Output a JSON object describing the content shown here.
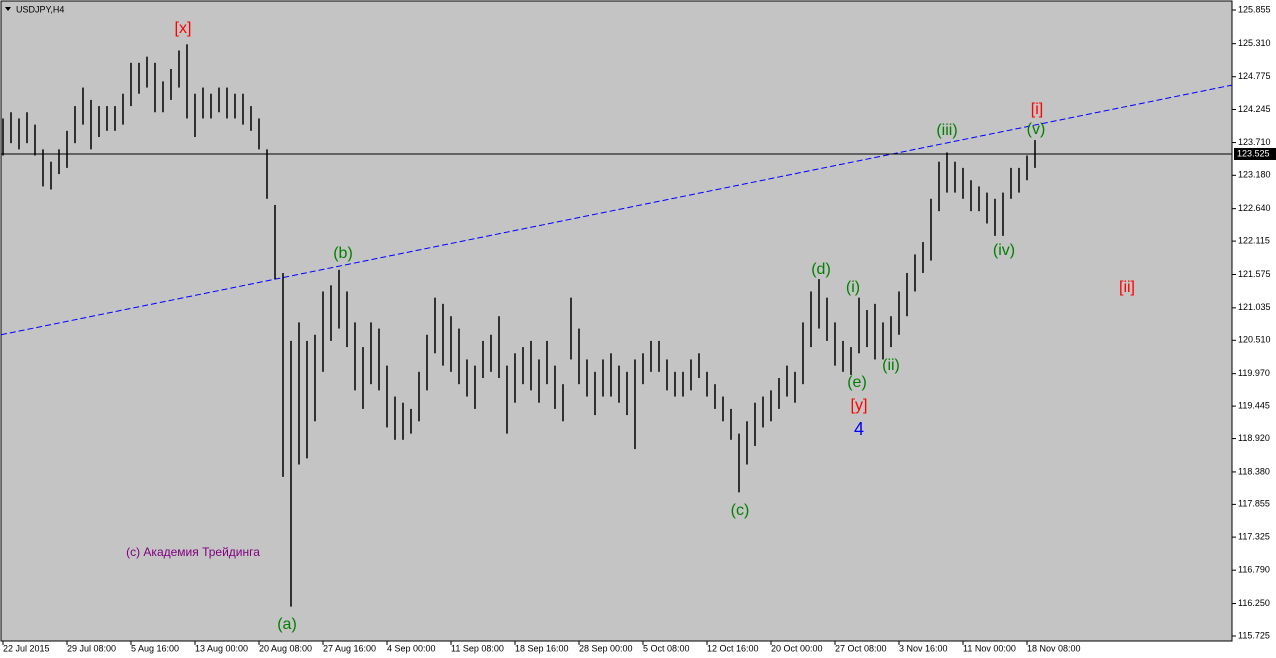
{
  "chart_data": {
    "type": "hl-bars",
    "title": "USDJPY,H4",
    "watermark": {
      "text": "(c) Академия Трейдинга",
      "color": "#800080"
    },
    "bar_color": "#000000",
    "background": "#c4c4c4",
    "x": [
      "22 Jul 2015",
      null,
      null,
      null,
      null,
      null,
      null,
      null,
      "29 Jul 08:00",
      null,
      null,
      null,
      null,
      null,
      null,
      null,
      "5 Aug 16:00",
      null,
      null,
      null,
      null,
      null,
      null,
      null,
      "13 Aug 00:00",
      null,
      null,
      null,
      null,
      null,
      null,
      null,
      "20 Aug 08:00",
      null,
      null,
      null,
      null,
      null,
      null,
      null,
      "27 Aug 16:00",
      null,
      null,
      null,
      null,
      null,
      null,
      null,
      "4 Sep 00:00",
      null,
      null,
      null,
      null,
      null,
      null,
      null,
      "11 Sep 08:00",
      null,
      null,
      null,
      null,
      null,
      null,
      null,
      "18 Sep 16:00",
      null,
      null,
      null,
      null,
      null,
      null,
      null,
      "28 Sep 00:00",
      null,
      null,
      null,
      null,
      null,
      null,
      null,
      "5 Oct 08:00",
      null,
      null,
      null,
      null,
      null,
      null,
      null,
      "12 Oct 16:00",
      null,
      null,
      null,
      null,
      null,
      null,
      null,
      "20 Oct 00:00",
      null,
      null,
      null,
      null,
      null,
      null,
      null,
      "27 Oct 08:00",
      null,
      null,
      null,
      null,
      null,
      null,
      null,
      "3 Nov 16:00",
      null,
      null,
      null,
      null,
      null,
      null,
      null,
      "11 Nov 00:00",
      null,
      null,
      null,
      null,
      null,
      null,
      null,
      "18 Nov 08:00",
      null
    ],
    "highs": [
      124.1,
      124.2,
      124.1,
      124.2,
      124.0,
      123.6,
      123.4,
      123.6,
      123.9,
      124.3,
      124.6,
      124.4,
      124.3,
      124.3,
      124.3,
      124.5,
      125.0,
      125.0,
      125.1,
      125.0,
      124.7,
      124.9,
      125.2,
      125.3,
      124.5,
      124.6,
      124.5,
      124.6,
      124.6,
      124.5,
      124.5,
      124.3,
      124.1,
      123.6,
      122.7,
      121.6,
      120.5,
      120.8,
      120.5,
      120.6,
      121.3,
      121.4,
      121.65,
      121.3,
      120.8,
      120.4,
      120.8,
      120.7,
      120.1,
      119.6,
      119.5,
      119.4,
      120.0,
      120.6,
      121.2,
      121.1,
      120.9,
      120.7,
      120.2,
      120.1,
      120.5,
      120.6,
      120.9,
      120.1,
      120.3,
      120.4,
      120.5,
      120.2,
      120.5,
      120.1,
      119.8,
      121.2,
      120.7,
      120.2,
      120.0,
      120.2,
      120.3,
      120.1,
      120.0,
      120.2,
      120.3,
      120.5,
      120.5,
      120.2,
      120.0,
      120.0,
      120.2,
      120.3,
      120.0,
      119.8,
      119.6,
      119.4,
      119.0,
      119.2,
      119.5,
      119.6,
      119.7,
      119.9,
      120.1,
      120.0,
      120.8,
      121.3,
      121.5,
      121.2,
      120.8,
      120.5,
      120.4,
      121.2,
      121.0,
      121.1,
      120.8,
      120.9,
      121.3,
      121.6,
      121.9,
      122.1,
      122.8,
      123.4,
      123.55,
      123.4,
      123.3,
      123.1,
      123.0,
      122.9,
      122.8,
      122.9,
      123.3,
      123.3,
      123.5,
      123.75
    ],
    "lows": [
      123.5,
      123.7,
      123.6,
      123.7,
      123.5,
      123.0,
      122.95,
      123.2,
      123.3,
      123.7,
      124.0,
      123.6,
      123.8,
      123.9,
      123.9,
      124.0,
      124.3,
      124.5,
      124.6,
      124.2,
      124.2,
      124.4,
      124.6,
      124.1,
      123.8,
      124.1,
      124.1,
      124.2,
      124.1,
      124.1,
      124.0,
      123.9,
      123.6,
      122.8,
      121.5,
      118.3,
      116.2,
      118.5,
      118.6,
      119.2,
      120.0,
      120.5,
      120.7,
      120.4,
      119.7,
      119.4,
      119.8,
      119.7,
      119.1,
      118.9,
      118.9,
      119.0,
      119.2,
      119.7,
      120.3,
      120.1,
      120.0,
      119.8,
      119.6,
      119.4,
      119.9,
      120.0,
      119.9,
      119.0,
      119.5,
      119.8,
      119.7,
      119.5,
      119.8,
      119.4,
      119.2,
      120.2,
      119.8,
      119.6,
      119.3,
      119.6,
      119.6,
      119.5,
      119.3,
      118.75,
      119.8,
      120.0,
      120.0,
      119.7,
      119.6,
      119.6,
      119.7,
      119.9,
      119.6,
      119.4,
      119.2,
      118.9,
      118.05,
      118.5,
      118.8,
      119.1,
      119.2,
      119.4,
      119.6,
      119.5,
      119.8,
      120.4,
      120.7,
      120.5,
      120.1,
      120.0,
      119.95,
      120.3,
      120.4,
      120.2,
      120.2,
      120.4,
      120.6,
      120.9,
      121.3,
      121.6,
      121.8,
      122.6,
      122.9,
      122.9,
      122.8,
      122.6,
      122.6,
      122.4,
      122.2,
      122.2,
      122.8,
      122.9,
      123.1,
      123.3
    ],
    "current_price": 123.525,
    "trendline": {
      "color": "#0000ff",
      "values": [
        120.6,
        124.64
      ]
    },
    "ylim": [
      115.725,
      125.855
    ],
    "yticks": [
      125.855,
      {
        "value": 125.31,
        "label": "125.310"
      },
      124.775,
      124.245,
      {
        "value": 123.71,
        "label": "123.710"
      },
      {
        "value": 123.18,
        "label": "123.180"
      },
      {
        "value": 122.64,
        "label": "122.640"
      },
      122.115,
      121.575,
      121.035,
      {
        "value": 120.51,
        "label": "120.510"
      },
      {
        "value": 119.97,
        "label": "119.970"
      },
      119.445,
      {
        "value": 118.92,
        "label": "118.920"
      },
      {
        "value": 118.38,
        "label": "118.380"
      },
      117.855,
      117.325,
      {
        "value": 116.79,
        "label": "116.790"
      },
      {
        "value": 116.25,
        "label": "116.250"
      },
      115.725
    ],
    "annotations": [
      {
        "text": "[x]",
        "color": "#ff0000"
      },
      {
        "text": "(b)",
        "color": "#008000"
      },
      {
        "text": "(a)",
        "color": "#008000"
      },
      {
        "text": "(c)",
        "color": "#008000"
      },
      {
        "text": "(d)",
        "color": "#008000"
      },
      {
        "text": "(i)",
        "color": "#008000"
      },
      {
        "text": "(e)",
        "color": "#008000"
      },
      {
        "text": "[y]",
        "color": "#ff0000"
      },
      {
        "text": "4",
        "color": "#0000ff"
      },
      {
        "text": "(ii)",
        "color": "#008000"
      },
      {
        "text": "(iii)",
        "color": "#008000"
      },
      {
        "text": "[i]",
        "color": "#ff0000"
      },
      {
        "text": "(v)",
        "color": "#008000"
      },
      {
        "text": "(iv)",
        "color": "#008000"
      },
      {
        "text": "[ii]",
        "color": "#ff0000"
      }
    ]
  }
}
